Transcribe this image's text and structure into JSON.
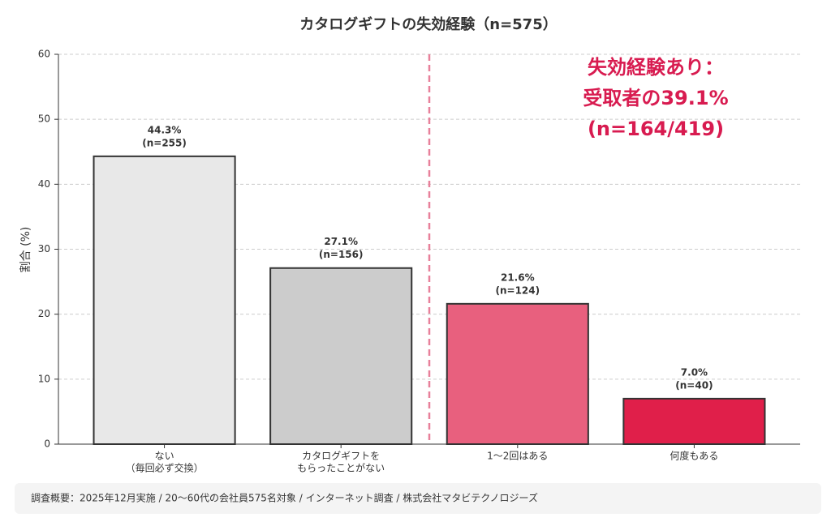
{
  "chart_data": {
    "type": "bar",
    "title": "カタログギフトの失効経験（n=575）",
    "y_label": "割合 (%)",
    "categories": [
      [
        "ない",
        "（毎回必ず交換）"
      ],
      [
        "カタログギフトを",
        "もらったことがない"
      ],
      [
        "1〜2回はある"
      ],
      [
        "何度もある"
      ]
    ],
    "values": [
      44.3,
      27.1,
      21.6,
      7.0
    ],
    "value_labels": [
      "44.3%",
      "27.1%",
      "21.6%",
      "7.0%"
    ],
    "counts": [
      "(n=255)",
      "(n=156)",
      "(n=124)",
      "(n=40)"
    ],
    "colors": [
      "#e8e8e8",
      "#cccccc",
      "#e8607e",
      "#e01f4a"
    ],
    "ylim": [
      0,
      60
    ],
    "yticks": [
      0,
      10,
      20,
      30,
      40,
      50,
      60
    ],
    "grid": true,
    "divider": {
      "after": 1,
      "color": "#e8809a"
    },
    "annotation": [
      "失効経験あり：",
      "受取者の39.1%",
      "(n=164/419)"
    ],
    "annotation_color": "#d81b50"
  },
  "footer": {
    "note": "調査概要：2025年12月実施 / 20〜60代の会社員575名対象 / インターネット調査 / 株式会社マタビテクノロジーズ"
  }
}
